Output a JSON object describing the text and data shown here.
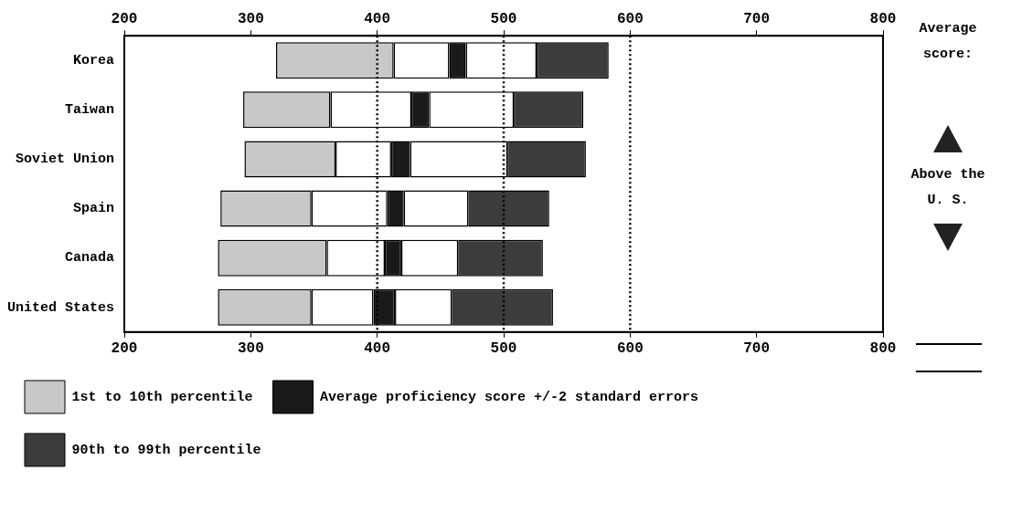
{
  "chart_data": {
    "type": "bar",
    "orientation": "horizontal",
    "categories": [
      "Korea",
      "Taiwan",
      "Soviet Union",
      "Spain",
      "Canada",
      "United States"
    ],
    "series": [
      {
        "name": "1st to 10th percentile",
        "color": "#c8c8c8",
        "base": [
          320,
          294,
          295,
          276,
          274,
          274
        ],
        "values": [
          93,
          69,
          72,
          72,
          86,
          74
        ]
      },
      {
        "color": "#ffffff",
        "base": [
          413,
          363,
          367,
          348,
          360,
          348
        ],
        "values": [
          44,
          64,
          44,
          60,
          46,
          49
        ]
      },
      {
        "name": "Average proficiency score +/-2 standard errors",
        "color": "#1a1a1a",
        "base": [
          457,
          427,
          411,
          408,
          406,
          397
        ],
        "values": [
          13,
          14,
          15,
          13,
          13,
          17
        ]
      },
      {
        "color": "#ffffff",
        "base": [
          470,
          441,
          426,
          421,
          419,
          414
        ],
        "values": [
          56,
          67,
          77,
          51,
          45,
          45
        ]
      },
      {
        "name": "90th to 99th percentile",
        "color": "#3c3c3c",
        "base": [
          526,
          508,
          503,
          472,
          464,
          459
        ],
        "values": [
          57,
          55,
          62,
          64,
          67,
          80
        ]
      }
    ],
    "xlim": [
      200,
      800
    ],
    "xticks": [
      200,
      300,
      400,
      500,
      600,
      700,
      800
    ],
    "x2lim": [
      200,
      800
    ],
    "x2ticks": [
      200,
      300,
      400,
      500,
      600,
      700,
      800
    ],
    "ref_lines": [
      {
        "axis": "x",
        "value": 400,
        "line_style": "dotted"
      },
      {
        "axis": "x",
        "value": 500,
        "line_style": "dotted"
      },
      {
        "axis": "x",
        "value": 600,
        "line_style": "dotted"
      }
    ],
    "grid": false,
    "legend": "bottom",
    "annotations": [
      "Average score:",
      "Above the U. S."
    ]
  }
}
